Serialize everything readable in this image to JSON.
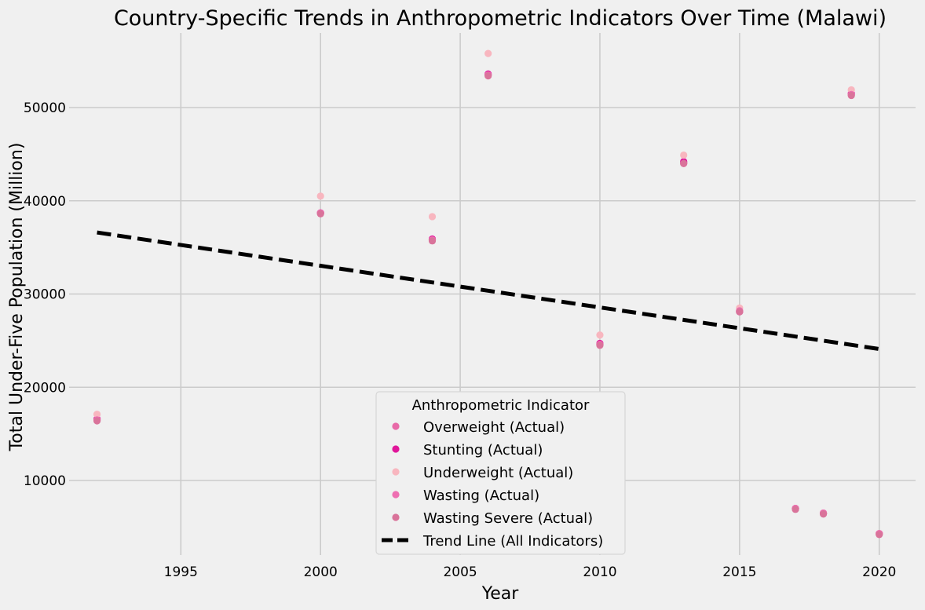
{
  "chart_data": {
    "type": "scatter",
    "title": "Country-Specific Trends in Anthropometric Indicators Over Time (Malawi)",
    "xlabel": "Year",
    "ylabel": "Total Under-Five Population (Million)",
    "xlim": [
      1991.0,
      2021.3
    ],
    "ylim": [
      2000,
      58000
    ],
    "x_ticks": [
      1995,
      2000,
      2005,
      2010,
      2015,
      2020
    ],
    "y_ticks": [
      10000,
      20000,
      30000,
      40000,
      50000
    ],
    "grid": true,
    "legend": {
      "title": "Anthropometric Indicator",
      "placement": "bottom-center"
    },
    "series": [
      {
        "name": "Overweight (Actual)",
        "color": "#e86aa8",
        "points": [
          [
            1992,
            16500
          ],
          [
            2000,
            38700
          ],
          [
            2004,
            35800
          ],
          [
            2006,
            53500
          ],
          [
            2010,
            24600
          ],
          [
            2013,
            44100
          ],
          [
            2015,
            28200
          ],
          [
            2017,
            7000
          ],
          [
            2018,
            6500
          ],
          [
            2019,
            51400
          ],
          [
            2020,
            4300
          ]
        ]
      },
      {
        "name": "Stunting (Actual)",
        "color": "#e0169a",
        "points": [
          [
            1992,
            16600
          ],
          [
            2000,
            38700
          ],
          [
            2004,
            35900
          ],
          [
            2006,
            53600
          ],
          [
            2010,
            24700
          ],
          [
            2013,
            44200
          ],
          [
            2015,
            28100
          ],
          [
            2017,
            7000
          ],
          [
            2018,
            6500
          ],
          [
            2019,
            51500
          ],
          [
            2020,
            4300
          ]
        ]
      },
      {
        "name": "Underweight (Actual)",
        "color": "#f8b6bf",
        "points": [
          [
            1992,
            17100
          ],
          [
            2000,
            40500
          ],
          [
            2004,
            38300
          ],
          [
            2006,
            55800
          ],
          [
            2010,
            25600
          ],
          [
            2013,
            44900
          ],
          [
            2015,
            28500
          ],
          [
            2017,
            7000
          ],
          [
            2018,
            6500
          ],
          [
            2019,
            51900
          ],
          [
            2020,
            4300
          ]
        ]
      },
      {
        "name": "Wasting (Actual)",
        "color": "#ee6fb2",
        "points": [
          [
            1992,
            16500
          ],
          [
            2000,
            38700
          ],
          [
            2004,
            35800
          ],
          [
            2006,
            53500
          ],
          [
            2010,
            24600
          ],
          [
            2013,
            44000
          ],
          [
            2015,
            28200
          ],
          [
            2017,
            7000
          ],
          [
            2018,
            6500
          ],
          [
            2019,
            51400
          ],
          [
            2020,
            4300
          ]
        ]
      },
      {
        "name": "Wasting Severe (Actual)",
        "color": "#d9739a",
        "points": [
          [
            1992,
            16400
          ],
          [
            2000,
            38600
          ],
          [
            2004,
            35700
          ],
          [
            2006,
            53400
          ],
          [
            2010,
            24500
          ],
          [
            2013,
            44000
          ],
          [
            2015,
            28100
          ],
          [
            2017,
            6900
          ],
          [
            2018,
            6400
          ],
          [
            2019,
            51300
          ],
          [
            2020,
            4200
          ]
        ]
      }
    ],
    "trend_line": {
      "name": "Trend Line (All Indicators)",
      "color": "#000000",
      "x": [
        1992,
        2020
      ],
      "y": [
        36600,
        24100
      ]
    }
  }
}
